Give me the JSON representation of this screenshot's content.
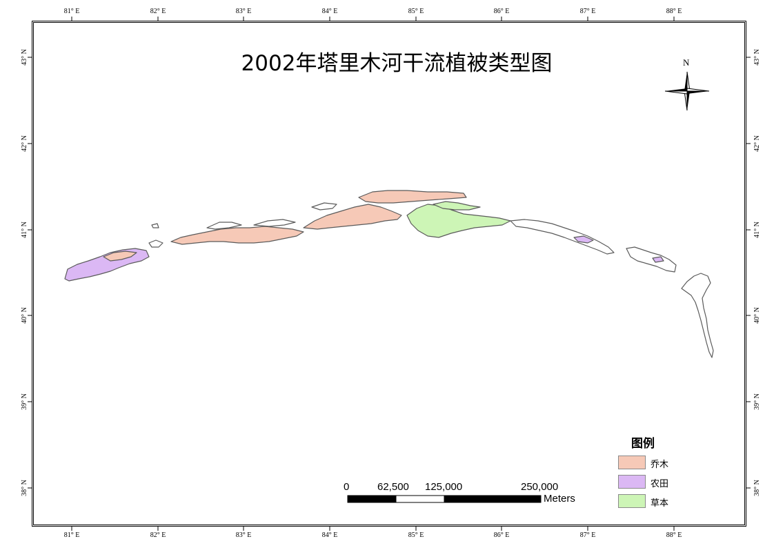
{
  "title": "2002年塔里木河干流植被类型图",
  "north_arrow_label": "N",
  "graticule": {
    "longitude_labels": [
      "81° E",
      "82° E",
      "83° E",
      "84° E",
      "85° E",
      "86° E",
      "87° E",
      "88° E"
    ],
    "latitude_labels": [
      "43° N",
      "42° N",
      "41° N",
      "40° N",
      "39° N",
      "38° N"
    ]
  },
  "scale_bar": {
    "ticks": [
      "0",
      "62,500",
      "125,000",
      "250,000"
    ],
    "unit": "Meters"
  },
  "legend": {
    "title": "图例",
    "items": [
      {
        "label": "乔木",
        "color": "#f6c9b7"
      },
      {
        "label": "农田",
        "color": "#dbb8f4"
      },
      {
        "label": "草本",
        "color": "#cdf5b6"
      }
    ]
  },
  "colors": {
    "outline": "#5a5a5a"
  }
}
